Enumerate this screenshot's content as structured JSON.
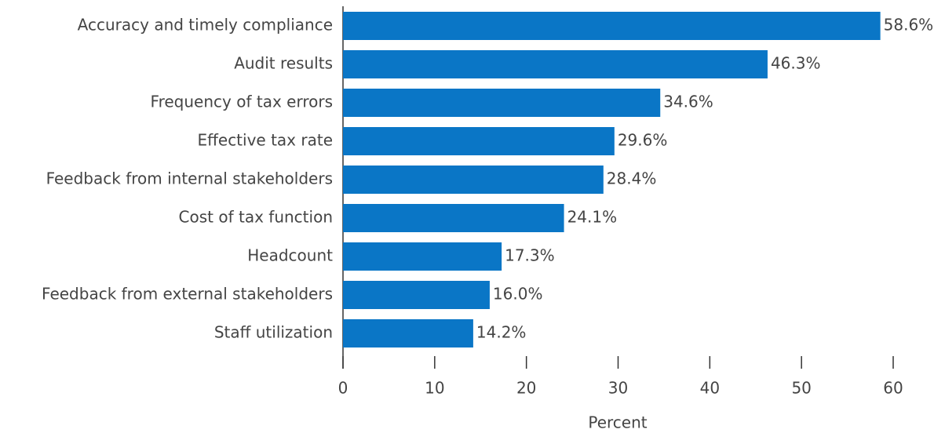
{
  "chart_data": {
    "type": "bar",
    "orientation": "horizontal",
    "categories": [
      "Accuracy and timely compliance",
      "Audit results",
      "Frequency of tax errors",
      "Effective tax rate",
      "Feedback from internal stakeholders",
      "Cost of tax function",
      "Headcount",
      "Feedback from external stakeholders",
      "Staff utilization"
    ],
    "values": [
      58.6,
      46.3,
      34.6,
      29.6,
      28.4,
      24.1,
      17.3,
      16.0,
      14.2
    ],
    "value_labels": [
      "58.6%",
      "46.3%",
      "34.6%",
      "29.6%",
      "28.4%",
      "24.1%",
      "17.3%",
      "16.0%",
      "14.2%"
    ],
    "color": "#0a76c6",
    "xlabel": "Percent",
    "xlim": [
      0,
      60
    ],
    "xticks": [
      0,
      10,
      20,
      30,
      40,
      50,
      60
    ]
  }
}
